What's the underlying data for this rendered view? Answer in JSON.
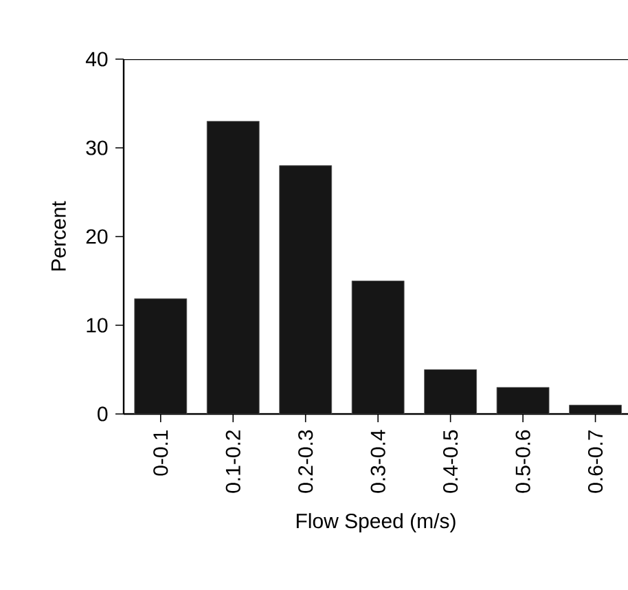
{
  "chart_data": {
    "type": "bar",
    "xlabel": "Flow Speed (m/s)",
    "ylabel": "Percent",
    "categories": [
      "0-0.1",
      "0.1-0.2",
      "0.2-0.3",
      "0.3-0.4",
      "0.4-0.5",
      "0.5-0.6",
      "0.6-0.7"
    ],
    "values": [
      13,
      33,
      28,
      15,
      5,
      3,
      1
    ],
    "color": "#161616",
    "ylim": [
      0,
      40
    ],
    "yticks": [
      0,
      10,
      20,
      30,
      40
    ]
  }
}
